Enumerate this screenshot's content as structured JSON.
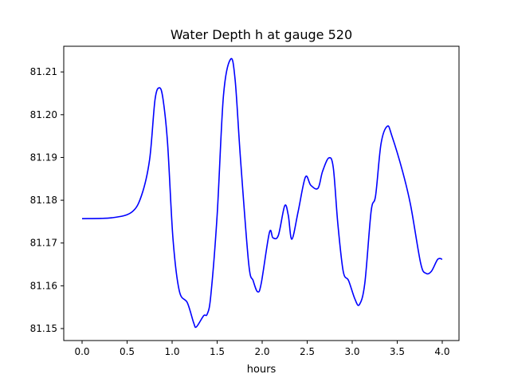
{
  "chart_data": {
    "type": "line",
    "title": "Water Depth h at gauge 520",
    "xlabel": "hours",
    "ylabel": "",
    "xlim": [
      -0.2035,
      4.186
    ],
    "ylim": [
      81.1472,
      81.216
    ],
    "xticks": [
      0.0,
      0.5,
      1.0,
      1.5,
      2.0,
      2.5,
      3.0,
      3.5,
      4.0
    ],
    "xtick_labels": [
      "0.0",
      "0.5",
      "1.0",
      "1.5",
      "2.0",
      "2.5",
      "3.0",
      "3.5",
      "4.0"
    ],
    "yticks": [
      81.15,
      81.16,
      81.17,
      81.18,
      81.19,
      81.2,
      81.21
    ],
    "ytick_labels": [
      "81.15",
      "81.16",
      "81.17",
      "81.18",
      "81.19",
      "81.20",
      "81.21"
    ],
    "grid": false,
    "series": [
      {
        "name": "h",
        "color": "#0000ff",
        "x": [
          0,
          0.33,
          0.55,
          0.66,
          0.75,
          0.81,
          0.86,
          0.9,
          0.95,
          1.01,
          1.08,
          1.17,
          1.24,
          1.27,
          1.35,
          1.39,
          1.43,
          1.5,
          1.57,
          1.65,
          1.7,
          1.76,
          1.85,
          1.9,
          1.95,
          1.99,
          2.08,
          2.12,
          2.18,
          2.25,
          2.29,
          2.33,
          2.4,
          2.48,
          2.54,
          2.62,
          2.67,
          2.74,
          2.79,
          2.84,
          2.9,
          2.96,
          3.03,
          3.08,
          3.14,
          3.21,
          3.26,
          3.32,
          3.39,
          3.44,
          3.56,
          3.65,
          3.76,
          3.82,
          3.88,
          3.95,
          4.0
        ],
        "y": [
          81.1757,
          81.1759,
          81.1772,
          81.1811,
          81.1895,
          81.2035,
          81.2063,
          81.2035,
          81.1932,
          81.1709,
          81.1588,
          81.156,
          81.1513,
          81.1504,
          81.153,
          81.1534,
          81.1578,
          81.1765,
          81.2044,
          81.213,
          81.2081,
          81.1895,
          81.1653,
          81.1612,
          81.1586,
          81.1606,
          81.1724,
          81.1712,
          81.1718,
          81.1787,
          81.1765,
          81.1709,
          81.1774,
          81.1854,
          81.1835,
          81.1828,
          81.1867,
          81.1899,
          81.1876,
          81.1746,
          81.1634,
          81.1612,
          81.1569,
          81.1556,
          81.1606,
          81.1774,
          81.1811,
          81.1932,
          81.1973,
          81.1951,
          81.1867,
          81.1787,
          81.1653,
          81.1629,
          81.1634,
          81.1662,
          81.1662
        ]
      }
    ]
  }
}
